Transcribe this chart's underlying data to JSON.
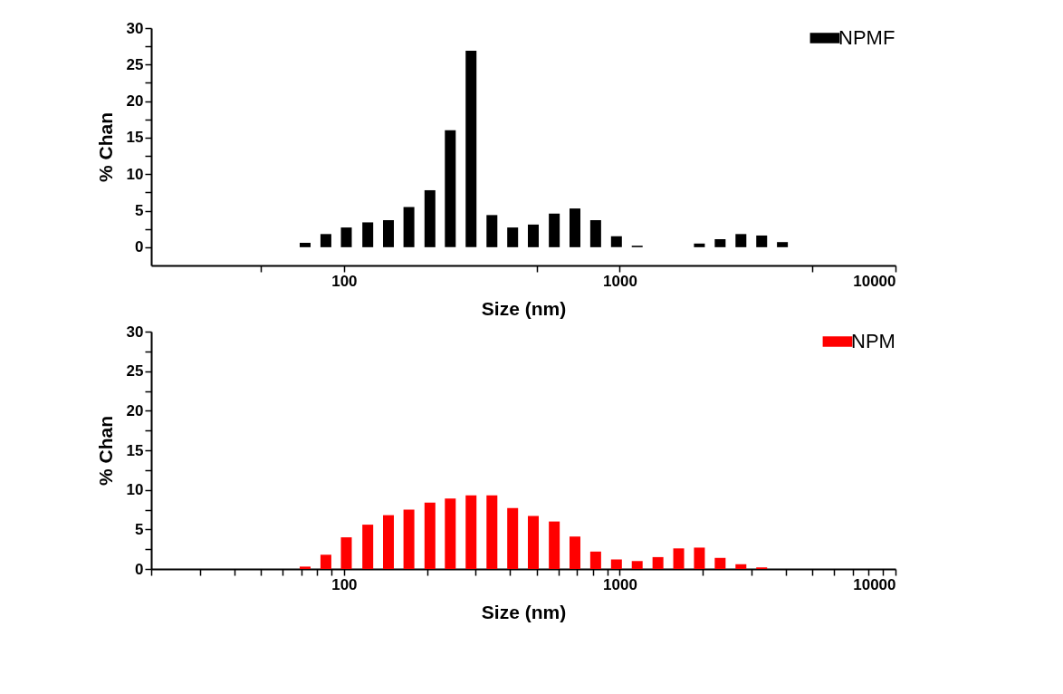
{
  "chart_data": [
    {
      "type": "bar",
      "xlabel": "Size (nm)",
      "ylabel": "% Chan",
      "log": "x",
      "legend": "top right",
      "xlim": [
        20,
        10000
      ],
      "xticks": [
        {
          "value": 50,
          "label": null
        },
        100,
        {
          "value": 500,
          "label": null
        },
        1000,
        {
          "value": 5000,
          "label": null
        },
        10000
      ],
      "ylim": [
        -2.5,
        30
      ],
      "yticks": [
        0,
        {
          "value": 2.5,
          "label": null
        },
        5,
        {
          "value": 7.5,
          "label": null
        },
        10,
        {
          "value": 12.5,
          "label": null
        },
        15,
        {
          "value": 17.5,
          "label": null
        },
        20,
        {
          "value": 22.5,
          "label": null
        },
        25,
        {
          "value": 27.5,
          "label": null
        },
        30
      ],
      "series": [
        {
          "name": "NPMF",
          "color": "#000000",
          "x": [
            21.5,
            25.6,
            30.4,
            36.2,
            43,
            51.1,
            60.8,
            72.3,
            86,
            102,
            122,
            145,
            172,
            205,
            243,
            289,
            344,
            409,
            486,
            579,
            688,
            818,
            973,
            1157,
            1376,
            1636,
            1945,
            2313,
            2751,
            3272,
            3890,
            4627,
            5502,
            6543
          ],
          "values": [
            0,
            0,
            0,
            0,
            0,
            0,
            0,
            0.6,
            1.8,
            2.7,
            3.4,
            3.7,
            5.5,
            7.8,
            16.0,
            26.9,
            4.4,
            2.7,
            3.1,
            4.6,
            5.3,
            3.7,
            1.5,
            0.2,
            0,
            0,
            0.5,
            1.1,
            1.8,
            1.6,
            0.7,
            0,
            0,
            0
          ]
        }
      ]
    },
    {
      "type": "bar",
      "xlabel": "Size (nm)",
      "ylabel": "% Chan",
      "log": "x",
      "legend": "top right",
      "xlim": [
        20,
        10000
      ],
      "xticks": [
        {
          "value": 20,
          "label": null
        },
        {
          "value": 30,
          "label": null
        },
        {
          "value": 40,
          "label": null
        },
        {
          "value": 50,
          "label": null
        },
        {
          "value": 60,
          "label": null
        },
        {
          "value": 70,
          "label": null
        },
        {
          "value": 80,
          "label": null
        },
        {
          "value": 90,
          "label": null
        },
        100,
        {
          "value": 200,
          "label": null
        },
        {
          "value": 300,
          "label": null
        },
        {
          "value": 400,
          "label": null
        },
        {
          "value": 500,
          "label": null
        },
        {
          "value": 600,
          "label": null
        },
        {
          "value": 700,
          "label": null
        },
        {
          "value": 800,
          "label": null
        },
        {
          "value": 900,
          "label": null
        },
        1000,
        {
          "value": 2000,
          "label": null
        },
        {
          "value": 3000,
          "label": null
        },
        {
          "value": 4000,
          "label": null
        },
        {
          "value": 5000,
          "label": null
        },
        {
          "value": 6000,
          "label": null
        },
        {
          "value": 7000,
          "label": null
        },
        {
          "value": 8000,
          "label": null
        },
        {
          "value": 9000,
          "label": null
        },
        10000
      ],
      "ylim": [
        0,
        30
      ],
      "yticks": [
        0,
        {
          "value": 2.5,
          "label": null
        },
        5,
        {
          "value": 7.5,
          "label": null
        },
        10,
        {
          "value": 12.5,
          "label": null
        },
        15,
        {
          "value": 17.5,
          "label": null
        },
        20,
        {
          "value": 22.5,
          "label": null
        },
        25,
        {
          "value": 27.5,
          "label": null
        },
        30
      ],
      "series": [
        {
          "name": "NPM",
          "color": "#ff0000",
          "x": [
            72.3,
            86,
            102,
            122,
            145,
            172,
            205,
            243,
            289,
            344,
            409,
            486,
            579,
            688,
            818,
            973,
            1157,
            1376,
            1636,
            1945,
            2313,
            2751,
            3272
          ],
          "values": [
            0.3,
            1.8,
            4.0,
            5.6,
            6.8,
            7.5,
            8.4,
            8.9,
            9.3,
            9.3,
            7.7,
            6.7,
            6.0,
            4.1,
            2.2,
            1.2,
            1.0,
            1.5,
            2.6,
            2.7,
            1.4,
            0.6,
            0.2
          ]
        }
      ]
    }
  ]
}
